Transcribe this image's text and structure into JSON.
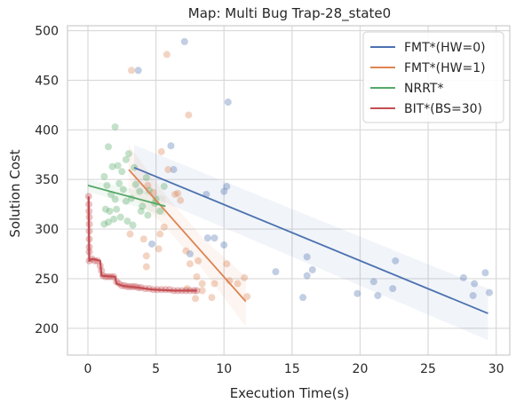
{
  "chart_data": {
    "type": "scatter",
    "title": "Map: Multi Bug Trap-28_state0",
    "xlabel": "Execution Time(s)",
    "ylabel": "Solution Cost",
    "xlim": [
      -1.5,
      31
    ],
    "ylim": [
      173,
      505
    ],
    "xticks": [
      0,
      5,
      10,
      15,
      20,
      25,
      30
    ],
    "yticks": [
      200,
      250,
      300,
      350,
      400,
      450,
      500
    ],
    "grid": true,
    "legend_position": "top-right",
    "series": [
      {
        "name": "FMT*(HW=0)",
        "color": "#4c72b0",
        "points": [
          [
            3.7,
            460
          ],
          [
            7.1,
            489
          ],
          [
            10.3,
            428
          ],
          [
            6.1,
            384
          ],
          [
            6.3,
            360
          ],
          [
            8.7,
            335
          ],
          [
            10.2,
            343
          ],
          [
            10.0,
            338
          ],
          [
            8.8,
            291
          ],
          [
            9.3,
            291
          ],
          [
            10.0,
            284
          ],
          [
            4.7,
            285
          ],
          [
            7.5,
            275
          ],
          [
            13.8,
            257
          ],
          [
            15.8,
            231
          ],
          [
            16.1,
            272
          ],
          [
            16.1,
            253
          ],
          [
            16.5,
            259
          ],
          [
            19.8,
            235
          ],
          [
            21.0,
            247
          ],
          [
            21.3,
            233
          ],
          [
            22.4,
            240
          ],
          [
            22.6,
            268
          ],
          [
            27.6,
            251
          ],
          [
            28.3,
            233
          ],
          [
            28.4,
            245
          ],
          [
            29.2,
            256
          ],
          [
            29.5,
            236
          ]
        ],
        "fit": [
          [
            3.4,
            362
          ],
          [
            29.4,
            215
          ]
        ],
        "band_upper": [
          [
            3.4,
            385
          ],
          [
            29.4,
            240
          ]
        ],
        "band_lower": [
          [
            3.4,
            340
          ],
          [
            29.4,
            188
          ]
        ]
      },
      {
        "name": "FMT*(HW=1)",
        "color": "#dd8452",
        "points": [
          [
            3.2,
            460
          ],
          [
            5.8,
            476
          ],
          [
            7.4,
            415
          ],
          [
            5.4,
            378
          ],
          [
            5.9,
            360
          ],
          [
            6.4,
            335
          ],
          [
            6.6,
            336
          ],
          [
            6.8,
            329
          ],
          [
            4.4,
            344
          ],
          [
            4.8,
            337
          ],
          [
            3.1,
            295
          ],
          [
            4.1,
            290
          ],
          [
            5.3,
            295
          ],
          [
            5.6,
            302
          ],
          [
            4.3,
            273
          ],
          [
            4.3,
            262
          ],
          [
            7.2,
            278
          ],
          [
            7.5,
            265
          ],
          [
            8.1,
            268
          ],
          [
            8.4,
            245
          ],
          [
            9.3,
            245
          ],
          [
            10.2,
            265
          ],
          [
            10.4,
            248
          ],
          [
            11.0,
            245
          ],
          [
            11.5,
            251
          ],
          [
            11.7,
            232
          ],
          [
            7.3,
            240
          ],
          [
            7.9,
            230
          ],
          [
            8.4,
            238
          ],
          [
            9.1,
            231
          ],
          [
            8.0,
            252
          ],
          [
            5.2,
            280
          ]
        ],
        "fit": [
          [
            3.0,
            360
          ],
          [
            11.6,
            227
          ]
        ],
        "band_upper": [
          [
            3.0,
            385
          ],
          [
            5.5,
            338
          ],
          [
            8.5,
            290
          ],
          [
            11.6,
            252
          ]
        ],
        "band_lower": [
          [
            3.0,
            337
          ],
          [
            5.5,
            305
          ],
          [
            8.5,
            258
          ],
          [
            11.6,
            202
          ]
        ]
      },
      {
        "name": "NRRT*",
        "color": "#55a868",
        "points": [
          [
            1.5,
            383
          ],
          [
            2.0,
            403
          ],
          [
            1.8,
            363
          ],
          [
            2.2,
            364
          ],
          [
            2.5,
            358
          ],
          [
            2.8,
            370
          ],
          [
            3.0,
            376
          ],
          [
            3.4,
            362
          ],
          [
            1.2,
            353
          ],
          [
            1.4,
            344
          ],
          [
            1.7,
            335
          ],
          [
            2.0,
            330
          ],
          [
            2.3,
            346
          ],
          [
            2.6,
            340
          ],
          [
            2.8,
            328
          ],
          [
            3.2,
            331
          ],
          [
            3.5,
            345
          ],
          [
            3.8,
            338
          ],
          [
            4.0,
            323
          ],
          [
            4.3,
            352
          ],
          [
            4.5,
            339
          ],
          [
            4.9,
            326
          ],
          [
            5.3,
            318
          ],
          [
            5.6,
            343
          ],
          [
            1.3,
            320
          ],
          [
            1.6,
            318
          ],
          [
            1.9,
            310
          ],
          [
            2.1,
            320
          ],
          [
            2.4,
            312
          ],
          [
            2.9,
            308
          ],
          [
            3.3,
            304
          ],
          [
            1.2,
            305
          ],
          [
            1.5,
            307
          ],
          [
            3.9,
            318
          ],
          [
            4.4,
            314
          ],
          [
            5.0,
            330
          ]
        ],
        "fit": [
          [
            0,
            344
          ],
          [
            5.7,
            323
          ]
        ],
        "band_upper": [
          [
            0,
            350
          ],
          [
            5.7,
            333
          ]
        ],
        "band_lower": [
          [
            0,
            338
          ],
          [
            5.7,
            313
          ]
        ]
      },
      {
        "name": "BIT*(BS=30)",
        "color": "#c44e52",
        "points": [
          [
            0.05,
            333
          ],
          [
            0.07,
            325
          ],
          [
            0.08,
            318
          ],
          [
            0.1,
            312
          ],
          [
            0.1,
            305
          ],
          [
            0.1,
            298
          ],
          [
            0.1,
            290
          ],
          [
            0.1,
            282
          ],
          [
            0.1,
            277
          ],
          [
            0.1,
            268
          ],
          [
            0.3,
            270
          ],
          [
            0.5,
            268
          ],
          [
            0.7,
            268
          ],
          [
            0.9,
            263
          ],
          [
            1.0,
            258
          ],
          [
            1.1,
            253
          ],
          [
            1.3,
            252
          ],
          [
            1.5,
            252
          ],
          [
            1.7,
            252
          ],
          [
            1.9,
            252
          ],
          [
            2.1,
            247
          ],
          [
            2.3,
            245
          ],
          [
            2.5,
            243
          ],
          [
            2.7,
            243
          ],
          [
            2.9,
            242
          ],
          [
            3.1,
            242
          ],
          [
            3.3,
            242
          ],
          [
            3.5,
            242
          ],
          [
            3.7,
            241
          ],
          [
            3.9,
            241
          ],
          [
            4.2,
            240
          ],
          [
            4.5,
            240
          ],
          [
            4.8,
            239
          ],
          [
            5.1,
            239
          ],
          [
            5.4,
            239
          ],
          [
            5.7,
            239
          ],
          [
            6.0,
            239
          ],
          [
            6.3,
            238
          ],
          [
            6.6,
            238
          ],
          [
            6.9,
            238
          ],
          [
            7.2,
            238
          ],
          [
            7.5,
            238
          ],
          [
            7.8,
            238
          ],
          [
            8.0,
            238
          ]
        ],
        "line": [
          [
            0.05,
            333
          ],
          [
            0.1,
            268
          ],
          [
            0.3,
            270
          ],
          [
            0.9,
            268
          ],
          [
            1.0,
            253
          ],
          [
            2.0,
            252
          ],
          [
            2.1,
            245
          ],
          [
            2.5,
            243
          ],
          [
            3.0,
            242
          ],
          [
            3.7,
            241
          ],
          [
            4.2,
            240
          ],
          [
            4.8,
            239
          ],
          [
            6.3,
            238
          ],
          [
            8.0,
            238
          ]
        ]
      }
    ]
  }
}
